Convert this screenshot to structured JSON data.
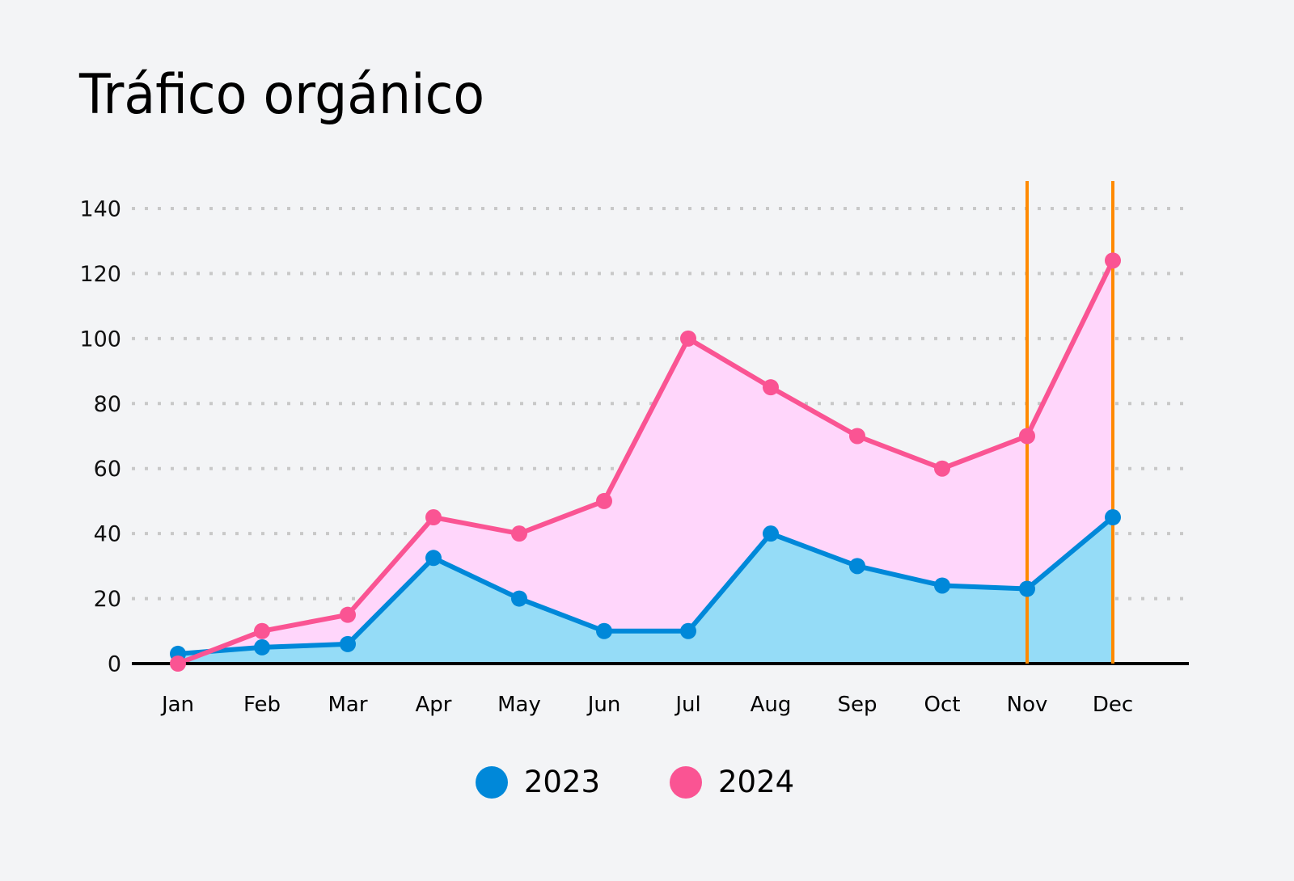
{
  "title": "Tráfico orgánico",
  "colors": {
    "background": "#f3f4f6",
    "series_2023_line": "#0088d9",
    "series_2023_fill": "#95dcf7",
    "series_2024_line": "#fa5493",
    "series_2024_fill": "#ffd6fb",
    "marker_line": "#ff8a00",
    "grid": "#c8c8c8",
    "axis": "#000000"
  },
  "legend": {
    "items": [
      {
        "label": "2023",
        "color": "#0088d9"
      },
      {
        "label": "2024",
        "color": "#fa5493"
      }
    ]
  },
  "chart_data": {
    "type": "area",
    "title": "Tráfico orgánico",
    "xlabel": "",
    "ylabel": "",
    "categories": [
      "Jan",
      "Feb",
      "Mar",
      "Apr",
      "May",
      "Jun",
      "Jul",
      "Aug",
      "Sep",
      "Oct",
      "Nov",
      "Dec"
    ],
    "series": [
      {
        "name": "2023",
        "values": [
          3,
          5,
          6,
          32.5,
          20,
          10,
          10,
          40,
          30,
          24,
          23,
          45
        ]
      },
      {
        "name": "2024",
        "values": [
          0,
          10,
          15,
          45,
          40,
          50,
          100,
          85,
          70,
          60,
          70,
          124
        ]
      }
    ],
    "ylim": [
      0,
      140
    ],
    "yticks": [
      0,
      20,
      40,
      60,
      80,
      100,
      120,
      140
    ],
    "grid": {
      "y": true,
      "style": "dotted"
    },
    "vertical_markers": [
      "Nov",
      "Dec"
    ],
    "legend_position": "bottom-center",
    "markers": true
  }
}
